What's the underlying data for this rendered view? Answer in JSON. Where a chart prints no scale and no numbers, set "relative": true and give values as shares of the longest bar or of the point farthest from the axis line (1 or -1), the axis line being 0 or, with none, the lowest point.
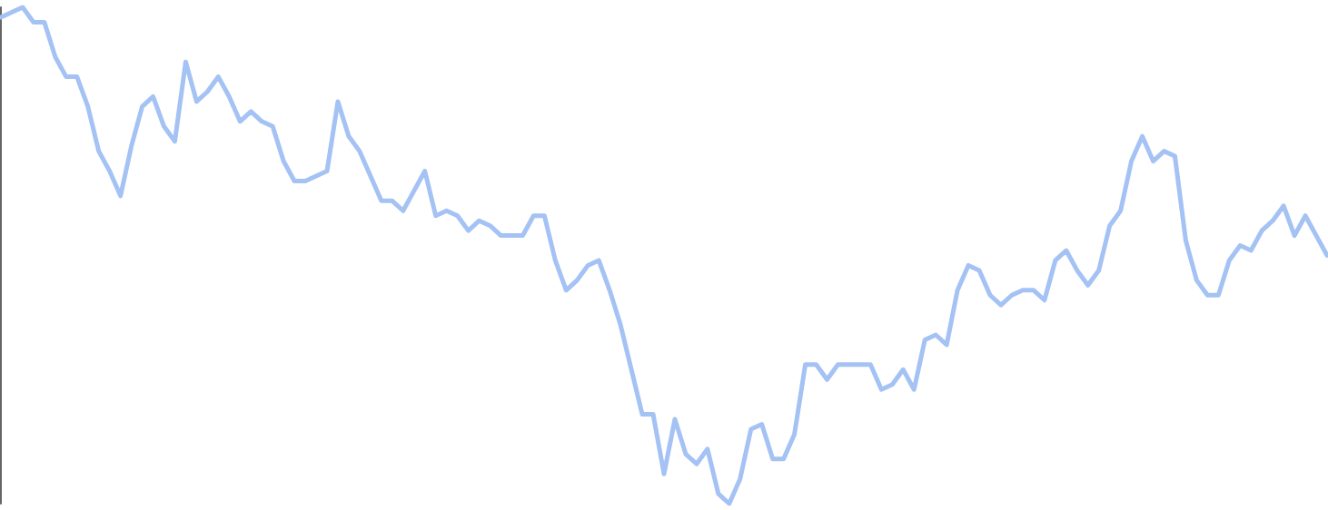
{
  "chart_data": {
    "type": "line",
    "relative": true,
    "grid": false,
    "marker": "none",
    "line_style": "solid",
    "categories": [
      null,
      null,
      null,
      null,
      null,
      null,
      null,
      null,
      null,
      null,
      null,
      null,
      null,
      null,
      null,
      null,
      null,
      null,
      null,
      null,
      null,
      null,
      null,
      null,
      null,
      null,
      null,
      null,
      null,
      null,
      null,
      null,
      null,
      null,
      null,
      null,
      null,
      null,
      null,
      null,
      null,
      null,
      null,
      null,
      null,
      null,
      null,
      null,
      null,
      null,
      null,
      null,
      null,
      null,
      null,
      null,
      null,
      null,
      null,
      null,
      null,
      null,
      null,
      null,
      null,
      null,
      null,
      null,
      null,
      null,
      null,
      null,
      null,
      null,
      null,
      null,
      null,
      null,
      null,
      null,
      null,
      null,
      null,
      null,
      null,
      null,
      null,
      null,
      null,
      null,
      null,
      null,
      null,
      null,
      null,
      null,
      null,
      null,
      null,
      null,
      null,
      null,
      null,
      null,
      null,
      null,
      null,
      null,
      null,
      null,
      null,
      null,
      null,
      null,
      null,
      null,
      null,
      null,
      null,
      null,
      null,
      null,
      null
    ],
    "series": [
      {
        "color": "#a4c2f4",
        "values": [
          0.98,
          0.99,
          1,
          0.97,
          0.97,
          0.9,
          0.86,
          0.86,
          0.8,
          0.71,
          0.67,
          0.62,
          0.72,
          0.8,
          0.82,
          0.76,
          0.73,
          0.89,
          0.81,
          0.83,
          0.86,
          0.82,
          0.77,
          0.79,
          0.77,
          0.76,
          0.69,
          0.65,
          0.65,
          0.66,
          0.67,
          0.81,
          0.74,
          0.71,
          0.66,
          0.61,
          0.61,
          0.59,
          0.63,
          0.67,
          0.58,
          0.59,
          0.58,
          0.55,
          0.57,
          0.56,
          0.54,
          0.54,
          0.54,
          0.58,
          0.58,
          0.49,
          0.43,
          0.45,
          0.48,
          0.49,
          0.43,
          0.36,
          0.27,
          0.18,
          0.18,
          0.06,
          0.17,
          0.1,
          0.08,
          0.11,
          0.02,
          0,
          0.05,
          0.15,
          0.16,
          0.09,
          0.09,
          0.14,
          0.28,
          0.28,
          0.25,
          0.28,
          0.28,
          0.28,
          0.28,
          0.23,
          0.24,
          0.27,
          0.23,
          0.33,
          0.34,
          0.32,
          0.43,
          0.48,
          0.47,
          0.42,
          0.4,
          0.42,
          0.43,
          0.43,
          0.41,
          0.49,
          0.51,
          0.47,
          0.44,
          0.47,
          0.56,
          0.59,
          0.69,
          0.74,
          0.69,
          0.71,
          0.7,
          0.53,
          0.45,
          0.42,
          0.42,
          0.49,
          0.52,
          0.51,
          0.55,
          0.57,
          0.6,
          0.54,
          0.58,
          0.54,
          0.5
        ]
      }
    ]
  }
}
